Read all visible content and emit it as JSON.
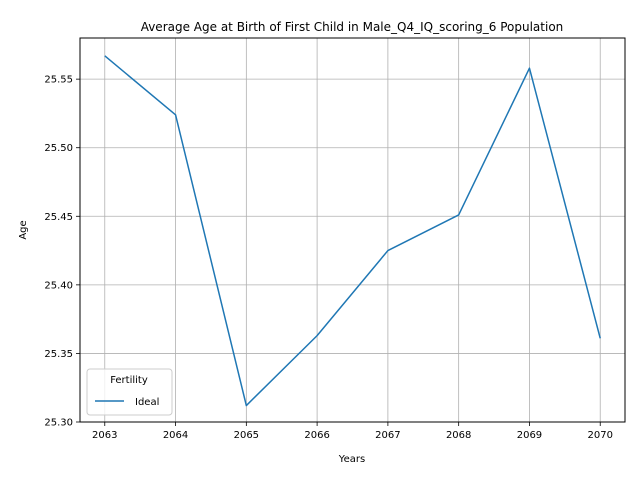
{
  "chart_data": {
    "type": "line",
    "title": "Average Age at Birth of First Child in Male_Q4_IQ_scoring_6 Population",
    "xlabel": "Years",
    "ylabel": "Age",
    "x": [
      2063,
      2064,
      2065,
      2066,
      2067,
      2068,
      2069,
      2070
    ],
    "xticks": [
      "2063",
      "2064",
      "2065",
      "2066",
      "2067",
      "2068",
      "2069",
      "2070"
    ],
    "yticks": [
      "25.30",
      "25.35",
      "25.40",
      "25.45",
      "25.50",
      "25.55"
    ],
    "ylim": [
      25.3,
      25.58
    ],
    "grid": true,
    "legend": {
      "title": "Fertility",
      "placement": "lower-left"
    },
    "series": [
      {
        "name": "Ideal",
        "color": "#1f77b4",
        "values": [
          25.567,
          25.524,
          25.312,
          25.363,
          25.425,
          25.451,
          25.558,
          25.361
        ]
      }
    ]
  }
}
